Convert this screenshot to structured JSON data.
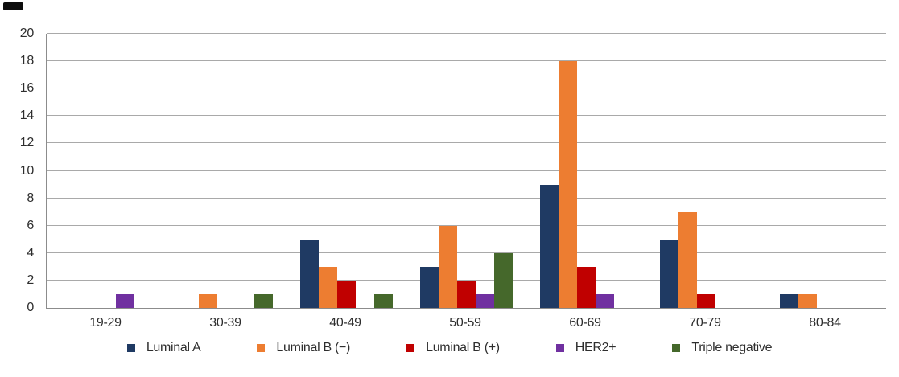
{
  "chart_data": {
    "type": "bar",
    "title": "",
    "xlabel": "",
    "ylabel": "",
    "categories": [
      "19-29",
      "30-39",
      "40-49",
      "50-59",
      "60-69",
      "70-79",
      "80-84"
    ],
    "series": [
      {
        "name": "Luminal A",
        "color": "#1f3a63",
        "values": [
          0,
          0,
          5,
          3,
          9,
          5,
          1
        ]
      },
      {
        "name": "Luminal B (−)",
        "color": "#ed7d31",
        "values": [
          0,
          1,
          3,
          6,
          18,
          7,
          1
        ]
      },
      {
        "name": "Luminal B (+)",
        "color": "#c00000",
        "values": [
          0,
          0,
          2,
          2,
          3,
          1,
          0
        ]
      },
      {
        "name": "HER2+",
        "color": "#7030a0",
        "values": [
          1,
          0,
          0,
          1,
          1,
          0,
          0
        ]
      },
      {
        "name": "Triple negative",
        "color": "#45682b",
        "values": [
          0,
          1,
          1,
          4,
          0,
          0,
          0
        ]
      }
    ],
    "ylim": [
      0,
      20
    ],
    "ytick_step": 2,
    "yticks": [
      0,
      2,
      4,
      6,
      8,
      10,
      12,
      14,
      16,
      18,
      20
    ],
    "grid": true,
    "legend_position": "bottom"
  },
  "style": {
    "grid_color": "#a9a9a9",
    "axis_color": "#8c8c8c",
    "text_color": "#2e2e2e",
    "background": "#ffffff"
  }
}
